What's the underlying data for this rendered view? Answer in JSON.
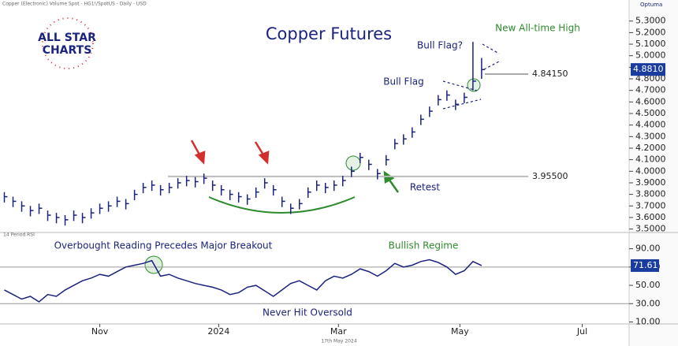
{
  "chart_data": [
    {
      "type": "ohlc",
      "title": "Copper Futures",
      "header": "Copper (Electronic) Volume Spot - HG1!/SpotUS - Daily - USD",
      "brand": "Optuma",
      "logo": [
        "ALL STAR",
        "CHARTS"
      ],
      "color": "#1a237e",
      "high": [
        3.82,
        3.78,
        3.74,
        3.7,
        3.72,
        3.66,
        3.64,
        3.62,
        3.66,
        3.64,
        3.68,
        3.72,
        3.74,
        3.78,
        3.76,
        3.84,
        3.9,
        3.92,
        3.88,
        3.9,
        3.94,
        3.96,
        3.95,
        3.98,
        3.92,
        3.88,
        3.84,
        3.82,
        3.8,
        3.86,
        3.94,
        3.88,
        3.78,
        3.72,
        3.76,
        3.86,
        3.92,
        3.9,
        3.92,
        3.96,
        4.04,
        4.16,
        4.1,
        4.02,
        4.14,
        4.28,
        4.32,
        4.38,
        4.49,
        4.56,
        4.66,
        4.7,
        4.62,
        4.68,
        5.12,
        4.98
      ],
      "low": [
        3.73,
        3.69,
        3.65,
        3.61,
        3.63,
        3.57,
        3.55,
        3.53,
        3.57,
        3.55,
        3.59,
        3.63,
        3.65,
        3.69,
        3.67,
        3.75,
        3.81,
        3.83,
        3.79,
        3.81,
        3.85,
        3.87,
        3.86,
        3.89,
        3.83,
        3.79,
        3.75,
        3.73,
        3.71,
        3.77,
        3.85,
        3.79,
        3.69,
        3.63,
        3.67,
        3.77,
        3.83,
        3.81,
        3.83,
        3.87,
        3.95,
        4.07,
        4.01,
        3.93,
        4.05,
        4.19,
        4.23,
        4.29,
        4.4,
        4.47,
        4.57,
        4.61,
        4.53,
        4.59,
        4.7,
        4.8
      ],
      "close": [
        3.78,
        3.74,
        3.7,
        3.66,
        3.68,
        3.62,
        3.6,
        3.58,
        3.62,
        3.6,
        3.64,
        3.68,
        3.7,
        3.74,
        3.72,
        3.8,
        3.86,
        3.88,
        3.84,
        3.86,
        3.9,
        3.92,
        3.91,
        3.94,
        3.88,
        3.84,
        3.8,
        3.78,
        3.76,
        3.82,
        3.9,
        3.84,
        3.74,
        3.68,
        3.72,
        3.82,
        3.88,
        3.86,
        3.88,
        3.92,
        4.0,
        4.12,
        4.06,
        3.98,
        4.1,
        4.24,
        4.28,
        4.34,
        4.45,
        4.52,
        4.62,
        4.66,
        4.58,
        4.64,
        4.78,
        4.88
      ],
      "ylim": [
        3.47,
        5.38
      ],
      "yticks": [
        {
          "value": 3.5,
          "label": "3.5000"
        },
        {
          "value": 3.6,
          "label": "3.6000"
        },
        {
          "value": 3.7,
          "label": "3.7000"
        },
        {
          "value": 3.8,
          "label": "3.8000"
        },
        {
          "value": 3.9,
          "label": "3.9000"
        },
        {
          "value": 4.0,
          "label": "4.0000"
        },
        {
          "value": 4.1,
          "label": "4.1000"
        },
        {
          "value": 4.2,
          "label": "4.2000"
        },
        {
          "value": 4.3,
          "label": "4.3000"
        },
        {
          "value": 4.4,
          "label": "4.4000"
        },
        {
          "value": 4.5,
          "label": "4.5000"
        },
        {
          "value": 4.6,
          "label": "4.6000"
        },
        {
          "value": 4.7,
          "label": "4.7000"
        },
        {
          "value": 4.8,
          "label": "4.8000"
        },
        {
          "value": 4.9,
          "label": "4.9000"
        },
        {
          "value": 5.0,
          "label": "5.0000"
        },
        {
          "value": 5.1,
          "label": "5.1000"
        },
        {
          "value": 5.2,
          "label": "5.2000"
        },
        {
          "value": 5.3,
          "label": "5.3000"
        }
      ],
      "levels": [
        {
          "value": 3.955,
          "label": "3.95500"
        },
        {
          "value": 4.8415,
          "label": "4.84150"
        }
      ],
      "last_price": {
        "value": 4.881,
        "label": "4.8810"
      },
      "annotations": [
        "New All-time High",
        "Bull Flag?",
        "Bull Flag",
        "Retest"
      ]
    },
    {
      "type": "line",
      "title": "14 Period RSI",
      "name": "RSI",
      "color": "#1a237e",
      "values": [
        45,
        40,
        35,
        38,
        32,
        40,
        38,
        45,
        50,
        55,
        58,
        62,
        60,
        65,
        70,
        72,
        74,
        77,
        60,
        62,
        58,
        55,
        52,
        50,
        48,
        45,
        40,
        42,
        48,
        50,
        44,
        38,
        45,
        52,
        55,
        50,
        45,
        55,
        60,
        58,
        62,
        68,
        65,
        60,
        66,
        74,
        70,
        72,
        76,
        78,
        75,
        70,
        62,
        66,
        76,
        71.61
      ],
      "ylim": [
        7,
        106
      ],
      "yticks": [
        {
          "value": 10,
          "label": "10.00"
        },
        {
          "value": 30,
          "label": "30.00"
        },
        {
          "value": 50,
          "label": "50.00"
        },
        {
          "value": 70,
          "label": "70.00"
        },
        {
          "value": 90,
          "label": "90.00"
        }
      ],
      "levels": [
        70,
        30
      ],
      "last_value": 71.61,
      "xlim": [
        -0.5,
        72
      ],
      "xticks": [
        {
          "value": 11,
          "label": "Nov"
        },
        {
          "value": 24.7,
          "label": "2024"
        },
        {
          "value": 38.5,
          "label": "Mar"
        },
        {
          "value": 52.5,
          "label": "May"
        },
        {
          "value": 66.6,
          "label": "Jul"
        }
      ],
      "date": "17th May 2024",
      "annotations": [
        "Overbought Reading Precedes Major Breakout",
        "Bullish Regime",
        "Never Hit Oversold"
      ]
    }
  ]
}
